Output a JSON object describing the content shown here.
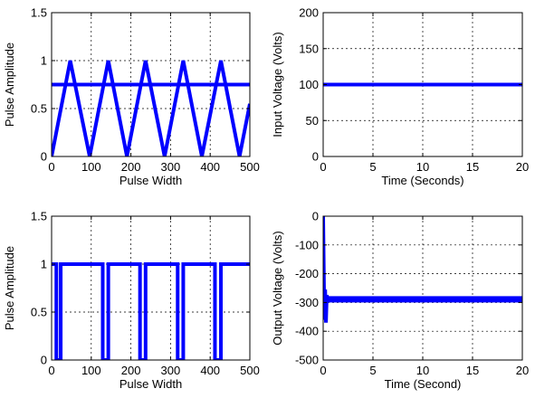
{
  "colors": {
    "line": "#0000ff",
    "axes": "#000000",
    "grid": "#000000",
    "background": "#ffffff"
  },
  "chart_data": [
    {
      "type": "line",
      "xlabel": "Pulse Width",
      "ylabel": "Pulse Amplitude",
      "xlim": [
        0,
        500
      ],
      "ylim": [
        0,
        1.5
      ],
      "xticks": [
        0,
        100,
        200,
        300,
        400,
        500
      ],
      "yticks": [
        0,
        0.5,
        1,
        1.5
      ],
      "xtick_labels": [
        "0",
        "100",
        "200",
        "300",
        "400",
        "500"
      ],
      "ytick_labels": [
        "0",
        "0.5",
        "1",
        "1.5"
      ],
      "grid": true,
      "series": [
        {
          "x": [
            0,
            47,
            96,
            143,
            190,
            237,
            285,
            332,
            379,
            427,
            474,
            500
          ],
          "y": [
            0,
            1,
            0,
            1,
            0,
            1,
            0,
            1,
            0,
            1,
            0,
            0.55
          ]
        },
        {
          "x": [
            0,
            500
          ],
          "y": [
            0.75,
            0.75
          ]
        }
      ]
    },
    {
      "type": "line",
      "xlabel": "Time (Seconds)",
      "ylabel": "Input Voltage (Volts)",
      "xlim": [
        0,
        20
      ],
      "ylim": [
        0,
        200
      ],
      "xticks": [
        0,
        5,
        10,
        15,
        20
      ],
      "yticks": [
        0,
        50,
        100,
        150,
        200
      ],
      "xtick_labels": [
        "0",
        "5",
        "10",
        "15",
        "20"
      ],
      "ytick_labels": [
        "0",
        "50",
        "100",
        "150",
        "200"
      ],
      "grid": true,
      "series": [
        {
          "x": [
            0,
            20
          ],
          "y": [
            100,
            100
          ]
        }
      ]
    },
    {
      "type": "line",
      "xlabel": "Pulse Width",
      "ylabel": "Pulse Amplitude",
      "xlim": [
        0,
        500
      ],
      "ylim": [
        0,
        1.5
      ],
      "xticks": [
        0,
        100,
        200,
        300,
        400,
        500
      ],
      "yticks": [
        0,
        0.5,
        1,
        1.5
      ],
      "xtick_labels": [
        "0",
        "100",
        "200",
        "300",
        "400",
        "500"
      ],
      "ytick_labels": [
        "0",
        "0.5",
        "1",
        "1.5"
      ],
      "grid": true,
      "series": [
        {
          "x": [
            0,
            12,
            12,
            23,
            23,
            129,
            129,
            143,
            143,
            223,
            223,
            237,
            237,
            318,
            318,
            332,
            332,
            412,
            412,
            427,
            427,
            500
          ],
          "y": [
            1,
            1,
            0,
            0,
            1,
            1,
            0,
            0,
            1,
            1,
            0,
            0,
            1,
            1,
            0,
            0,
            1,
            1,
            0,
            0,
            1,
            1
          ]
        }
      ]
    },
    {
      "type": "line",
      "xlabel": "Time (Second)",
      "ylabel": "Output Voltage (Volts)",
      "xlim": [
        0,
        20
      ],
      "ylim": [
        -500,
        0
      ],
      "xticks": [
        0,
        5,
        10,
        15,
        20
      ],
      "yticks": [
        -500,
        -400,
        -300,
        -200,
        -100,
        0
      ],
      "xtick_labels": [
        "0",
        "5",
        "10",
        "15",
        "20"
      ],
      "ytick_labels": [
        "-500",
        "-400",
        "-300",
        "-200",
        "-100",
        "0"
      ],
      "grid": true,
      "series": [
        {
          "x": [
            0,
            0.12,
            0.2,
            0.28,
            0.36,
            0.5,
            20
          ],
          "y": [
            0,
            -360,
            -255,
            -370,
            -275,
            -290,
            -290
          ]
        }
      ],
      "band": {
        "x": [
          0.3,
          20
        ],
        "y": [
          -300,
          -278
        ]
      }
    }
  ]
}
